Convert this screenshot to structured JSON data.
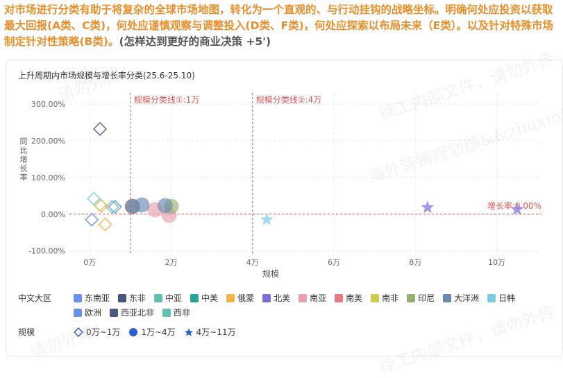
{
  "instruction": {
    "text": "对市场进行分类有助于将复杂的全球市场地图，转化为一个直观的、与行动挂钩的战略坐标。明确何处应投资以获取最大回报(A类、C类)，何处应谨慎观察与调整投入(D类、F类)，何处应探索以布局未来（E类）。以及针对特殊市场制定针对性策略(B类)。",
    "suffix": "(怎样达到更好的商业决策 +5')"
  },
  "chart_data": {
    "type": "scatter",
    "title": "上升周期内市场规模与增长率分类(25.6-25.10)",
    "xlabel": "规模",
    "ylabel": "同比增长率",
    "xlim": [
      -0.5,
      11.1
    ],
    "ylim": [
      -110,
      330
    ],
    "x_ticks": [
      0,
      2,
      4,
      6,
      8,
      10
    ],
    "x_tick_labels": [
      "0万",
      "2万",
      "4万",
      "6万",
      "8万",
      "10万"
    ],
    "y_ticks": [
      -100,
      0,
      100,
      200,
      300
    ],
    "y_tick_labels": [
      "-100.00%",
      "0.00%",
      "100.00%",
      "200.00%",
      "300.00%"
    ],
    "grid": true,
    "reference_lines": [
      {
        "axis": "x",
        "value": 1,
        "label": "规模分类线①:1万"
      },
      {
        "axis": "x",
        "value": 4,
        "label": "规模分类线②:4万"
      },
      {
        "axis": "y",
        "value": 0,
        "label": "增长率:0.00%"
      }
    ],
    "series": [
      {
        "name": "东南亚",
        "color": "#6b8fea",
        "points": [
          [
            0.62,
            20,
            "diamond"
          ]
        ]
      },
      {
        "name": "东非",
        "color": "#45577a",
        "points": [
          [
            1.05,
            21,
            "circle"
          ]
        ]
      },
      {
        "name": "中亚",
        "color": "#63bfb5",
        "points": [
          [
            0.55,
            20,
            "diamond"
          ]
        ]
      },
      {
        "name": "中美",
        "color": "#2aa199",
        "points": []
      },
      {
        "name": "俄蒙",
        "color": "#f5b24a",
        "points": [
          [
            0.28,
            22,
            "diamond"
          ],
          [
            0.38,
            -28,
            "diamond"
          ]
        ]
      },
      {
        "name": "北美",
        "color": "#7f6ed8",
        "points": [
          [
            8.3,
            18,
            "star"
          ],
          [
            10.5,
            13,
            "star"
          ]
        ]
      },
      {
        "name": "南亚",
        "color": "#eb9eae",
        "points": [
          [
            1.6,
            12,
            "circle"
          ],
          [
            1.95,
            -3,
            "circle"
          ]
        ]
      },
      {
        "name": "南美",
        "color": "#e47a86",
        "points": []
      },
      {
        "name": "南非",
        "color": "#c9cc4c",
        "points": [
          [
            0.25,
            26,
            "diamond"
          ]
        ]
      },
      {
        "name": "印尼",
        "color": "#93b06e",
        "points": [
          [
            2.0,
            21,
            "circle"
          ]
        ]
      },
      {
        "name": "大洋洲",
        "color": "#6b89b0",
        "points": [
          [
            1.28,
            25,
            "circle"
          ],
          [
            1.85,
            23,
            "circle"
          ]
        ]
      },
      {
        "name": "日韩",
        "color": "#7ccbe5",
        "points": [
          [
            0.1,
            42,
            "diamond"
          ],
          [
            4.35,
            -15,
            "star"
          ]
        ]
      },
      {
        "name": "欧洲",
        "color": "#6b8fea",
        "points": [
          [
            0.05,
            -15,
            "diamond"
          ]
        ]
      },
      {
        "name": "西亚北非",
        "color": "#4a5a80",
        "points": [
          [
            0.25,
            232,
            "diamond"
          ]
        ]
      },
      {
        "name": "西非",
        "color": "#63bfb5",
        "points": []
      }
    ]
  },
  "legend": {
    "region_title": "中文大区",
    "size_title": "规模",
    "size_items": [
      {
        "label": "0万~1万",
        "shape": "diamond"
      },
      {
        "label": "1万~4万",
        "shape": "circle"
      },
      {
        "label": "4万~11万",
        "shape": "star"
      }
    ]
  },
  "watermarks": [
    "请勿外传！",
    "徐工内部文件，请勿外传",
    "海外营销规划部&&zhuxinfu&&朱信甫"
  ]
}
